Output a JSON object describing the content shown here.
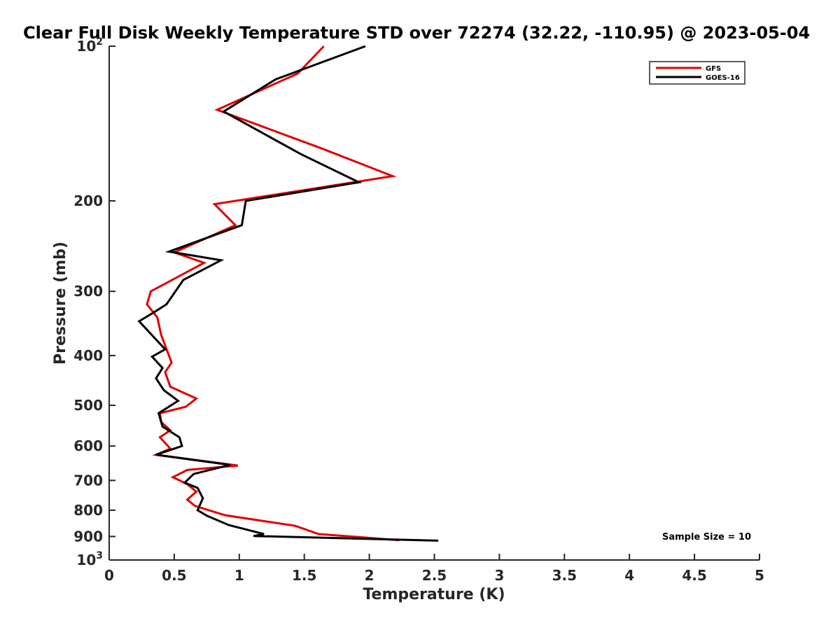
{
  "chart_data": {
    "type": "line",
    "title": "Clear Full Disk Weekly Temperature STD over 72274 (32.22, -110.95) @ 2023-05-04",
    "xlabel": "Temperature (K)",
    "ylabel": "Pressure (mb)",
    "xlim": [
      0,
      5
    ],
    "ylim": [
      100,
      1000
    ],
    "y_scale": "log",
    "y_reversed": true,
    "x_ticks": [
      "0",
      "0.5",
      "1",
      "1.5",
      "2",
      "2.5",
      "3",
      "3.5",
      "4",
      "4.5",
      "5"
    ],
    "y_ticks": [
      {
        "value": 100,
        "base": "10",
        "exp": "2"
      },
      {
        "value": 200,
        "label": "200"
      },
      {
        "value": 300,
        "label": "300"
      },
      {
        "value": 400,
        "label": "400"
      },
      {
        "value": 500,
        "label": "500"
      },
      {
        "value": 600,
        "label": "600"
      },
      {
        "value": 700,
        "label": "700"
      },
      {
        "value": 800,
        "label": "800"
      },
      {
        "value": 900,
        "label": "900"
      },
      {
        "value": 1000,
        "base": "10",
        "exp": "3"
      }
    ],
    "legend_position": "top-right",
    "grid": false,
    "annotation": "Sample Size = 10",
    "series": [
      {
        "name": "GFS",
        "color": "#e00000",
        "points": [
          [
            1.65,
            100
          ],
          [
            1.45,
            113
          ],
          [
            0.83,
            133
          ],
          [
            1.63,
            158
          ],
          [
            2.18,
            179
          ],
          [
            0.81,
            203
          ],
          [
            0.97,
            223
          ],
          [
            0.5,
            252
          ],
          [
            0.73,
            264
          ],
          [
            0.32,
            300
          ],
          [
            0.29,
            318
          ],
          [
            0.37,
            337
          ],
          [
            0.4,
            365
          ],
          [
            0.48,
            413
          ],
          [
            0.43,
            431
          ],
          [
            0.47,
            460
          ],
          [
            0.67,
            485
          ],
          [
            0.59,
            503
          ],
          [
            0.39,
            518
          ],
          [
            0.4,
            539
          ],
          [
            0.47,
            559
          ],
          [
            0.39,
            577
          ],
          [
            0.47,
            607
          ],
          [
            0.36,
            624
          ],
          [
            0.99,
            655
          ],
          [
            0.6,
            668
          ],
          [
            0.49,
            690
          ],
          [
            0.6,
            712
          ],
          [
            0.67,
            736
          ],
          [
            0.6,
            763
          ],
          [
            0.66,
            785
          ],
          [
            0.89,
            818
          ],
          [
            1.43,
            858
          ],
          [
            1.61,
            890
          ],
          [
            2.23,
            915
          ]
        ]
      },
      {
        "name": "GOES-16",
        "color": "#000000",
        "points": [
          [
            1.97,
            100
          ],
          [
            1.28,
            116
          ],
          [
            0.88,
            134
          ],
          [
            1.47,
            162
          ],
          [
            1.92,
            184
          ],
          [
            1.05,
            200
          ],
          [
            1.02,
            223
          ],
          [
            0.46,
            251
          ],
          [
            0.86,
            261
          ],
          [
            0.57,
            285
          ],
          [
            0.44,
            318
          ],
          [
            0.34,
            330
          ],
          [
            0.23,
            343
          ],
          [
            0.43,
            389
          ],
          [
            0.33,
            402
          ],
          [
            0.41,
            423
          ],
          [
            0.36,
            443
          ],
          [
            0.42,
            467
          ],
          [
            0.53,
            490
          ],
          [
            0.38,
            518
          ],
          [
            0.41,
            550
          ],
          [
            0.54,
            577
          ],
          [
            0.56,
            600
          ],
          [
            0.36,
            624
          ],
          [
            0.93,
            653
          ],
          [
            0.65,
            680
          ],
          [
            0.58,
            707
          ],
          [
            0.68,
            724
          ],
          [
            0.72,
            758
          ],
          [
            0.68,
            800
          ],
          [
            0.75,
            820
          ],
          [
            0.92,
            855
          ],
          [
            1.19,
            890
          ],
          [
            1.11,
            898
          ],
          [
            2.53,
            917
          ]
        ]
      }
    ]
  }
}
